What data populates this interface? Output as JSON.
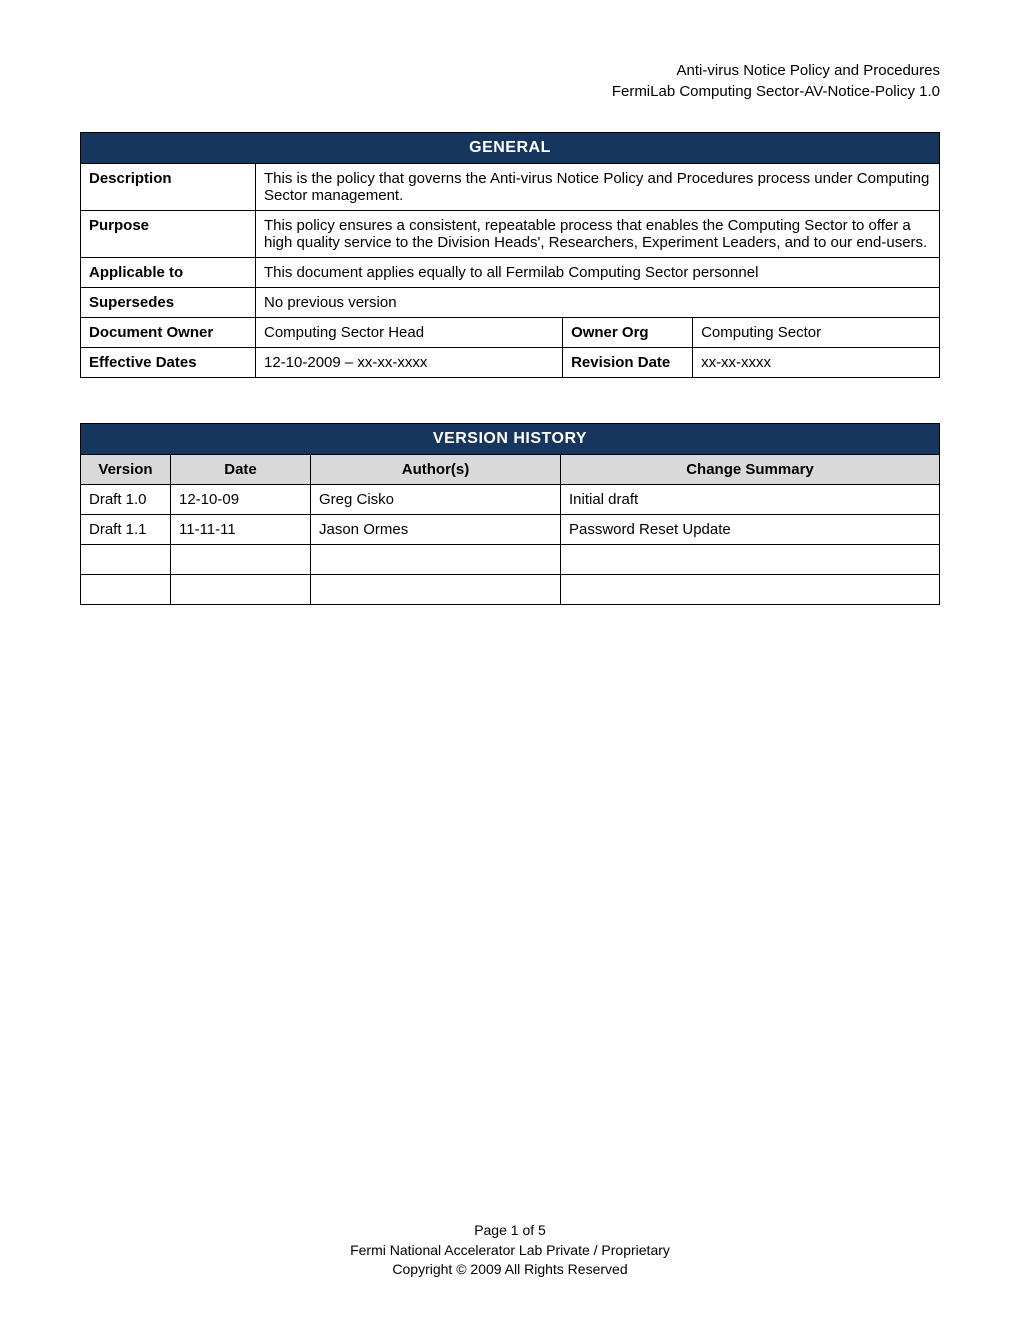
{
  "header": {
    "line1": "Anti-virus Notice Policy and Procedures",
    "line2": "FermiLab Computing Sector-AV-Notice-Policy 1.0"
  },
  "general": {
    "title": "GENERAL",
    "description_label": "Description",
    "description_value": "This is the policy that governs the Anti-virus Notice Policy and Procedures process under Computing Sector management.",
    "purpose_label": "Purpose",
    "purpose_value": "This policy ensures a consistent, repeatable process that enables the Computing Sector to offer a high quality service to the Division Heads', Researchers, Experiment Leaders, and to our end-users.",
    "applicable_label": "Applicable to",
    "applicable_value": "This document applies equally to all Fermilab Computing Sector personnel",
    "supersedes_label": "Supersedes",
    "supersedes_value": "No previous version",
    "owner_label": "Document Owner",
    "owner_value": "Computing Sector Head",
    "owner_org_label": "Owner Org",
    "owner_org_value": "Computing Sector",
    "effective_label": "Effective Dates",
    "effective_value": "12-10-2009 – xx-xx-xxxx",
    "revision_label": "Revision Date",
    "revision_value": "xx-xx-xxxx"
  },
  "version_history": {
    "title": "VERSION HISTORY",
    "col_version": "Version",
    "col_date": "Date",
    "col_author": "Author(s)",
    "col_summary": "Change Summary",
    "rows": [
      {
        "version": "Draft 1.0",
        "date": "12-10-09",
        "author": "Greg Cisko",
        "summary": "Initial draft"
      },
      {
        "version": "Draft 1.1",
        "date": "11-11-11",
        "author": "Jason Ormes",
        "summary": "Password Reset Update"
      },
      {
        "version": "",
        "date": "",
        "author": "",
        "summary": ""
      },
      {
        "version": "",
        "date": "",
        "author": "",
        "summary": ""
      }
    ]
  },
  "footer": {
    "page": "Page 1 of 5",
    "org": "Fermi National Accelerator Lab Private / Proprietary",
    "copyright": "Copyright © 2009 All Rights Reserved"
  }
}
